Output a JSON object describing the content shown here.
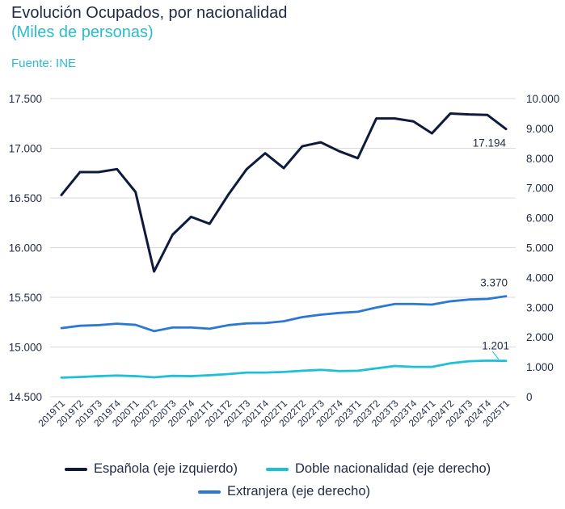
{
  "header": {
    "title": "Evolución Ocupados, por nacionalidad",
    "subtitle": "(Miles de personas)",
    "source": "Fuente: INE"
  },
  "colors": {
    "espanola": "#0f1b3d",
    "doble": "#1ec0d8",
    "extranjera": "#2b78d4",
    "grid": "#d9d9d9",
    "text": "#1f2a44"
  },
  "chart_data": {
    "type": "line",
    "title": "Evolución Ocupados, por nacionalidad",
    "subtitle": "(Miles de personas)",
    "categories": [
      "2019T1",
      "2019T2",
      "2019T3",
      "2019T4",
      "2020T1",
      "2020T2",
      "2020T3",
      "2020T4",
      "2021T1",
      "2021T2",
      "2021T3",
      "2021T4",
      "2022T1",
      "2022T2",
      "2022T3",
      "2022T4",
      "2023T1",
      "2023T2",
      "2023T3",
      "2023T4",
      "2024T1",
      "2024T2",
      "2024T3",
      "2024T4",
      "2025T1"
    ],
    "left_axis": {
      "ylim": [
        14500,
        17500
      ],
      "ticks": [
        14500,
        15000,
        15500,
        16000,
        16500,
        17000,
        17500
      ],
      "tick_labels": [
        "14.500",
        "15.000",
        "15.500",
        "16.000",
        "16.500",
        "17.000",
        "17.500"
      ]
    },
    "right_axis": {
      "ylim": [
        0,
        10000
      ],
      "ticks": [
        0,
        1000,
        2000,
        3000,
        4000,
        5000,
        6000,
        7000,
        8000,
        9000,
        10000
      ],
      "tick_labels": [
        "0",
        "1.000",
        "2.000",
        "3.000",
        "4.000",
        "5.000",
        "6.000",
        "7.000",
        "8.000",
        "9.000",
        "10.000"
      ]
    },
    "series": [
      {
        "key": "espanola",
        "name": "Española (eje izquierdo)",
        "axis": "left",
        "values": [
          16530,
          16760,
          16760,
          16790,
          16560,
          15760,
          16130,
          16310,
          16240,
          16530,
          16790,
          16950,
          16800,
          17020,
          17060,
          16970,
          16900,
          17300,
          17300,
          17270,
          17150,
          17350,
          17340,
          17335,
          17194
        ],
        "end_label": "17.194"
      },
      {
        "key": "doble",
        "name": "Doble nacionalidad (eje derecho)",
        "axis": "right",
        "values": [
          640,
          660,
          690,
          710,
          690,
          650,
          700,
          690,
          720,
          760,
          810,
          810,
          830,
          870,
          900,
          860,
          870,
          950,
          1030,
          1000,
          1000,
          1120,
          1190,
          1210,
          1201
        ],
        "end_label": "1.201"
      },
      {
        "key": "extranjera",
        "name": "Extranjera (eje derecho)",
        "axis": "right",
        "values": [
          2300,
          2380,
          2400,
          2450,
          2410,
          2200,
          2320,
          2320,
          2280,
          2400,
          2460,
          2470,
          2530,
          2670,
          2750,
          2810,
          2850,
          2990,
          3110,
          3110,
          3090,
          3200,
          3260,
          3280,
          3370
        ],
        "end_label": "3.370"
      }
    ],
    "legend": {
      "position": "bottom"
    }
  }
}
